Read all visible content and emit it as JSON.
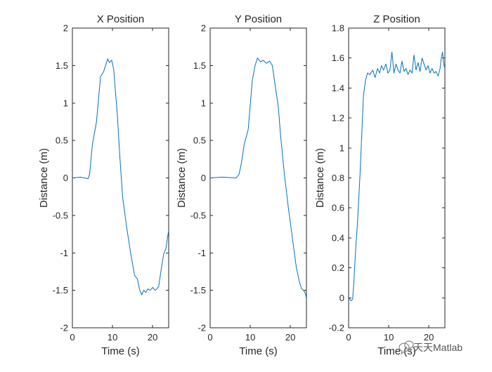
{
  "chart_data": [
    {
      "type": "line",
      "title": "X Position",
      "xlabel": "Time (s)",
      "ylabel": "Distance (m)",
      "xlim": [
        0,
        24
      ],
      "ylim": [
        -2,
        2
      ],
      "xticks": [
        0,
        10,
        20
      ],
      "yticks": [
        -2,
        -1.5,
        -1,
        -0.5,
        0,
        0.5,
        1,
        1.5,
        2
      ],
      "series": [
        {
          "name": "X",
          "x": [
            0,
            2,
            3.9,
            4.3,
            5,
            6,
            7,
            7.8,
            8.4,
            8.8,
            9.2,
            9.8,
            10.3,
            10.8,
            11.2,
            11.8,
            12.5,
            13.5,
            14.5,
            15.5,
            16.2,
            16.8,
            17.3,
            17.8,
            18.3,
            18.8,
            19.4,
            20,
            20.6,
            21.1,
            21.5,
            22.2,
            22.8,
            23.3,
            23.7,
            24
          ],
          "y": [
            0,
            0.01,
            -0.01,
            0.05,
            0.45,
            0.75,
            1.35,
            1.42,
            1.52,
            1.59,
            1.54,
            1.57,
            1.45,
            1.1,
            0.85,
            0.3,
            -0.25,
            -0.65,
            -1.0,
            -1.3,
            -1.35,
            -1.5,
            -1.56,
            -1.5,
            -1.53,
            -1.48,
            -1.5,
            -1.46,
            -1.5,
            -1.48,
            -1.45,
            -1.2,
            -1.0,
            -0.95,
            -0.8,
            -0.7
          ]
        }
      ]
    },
    {
      "type": "line",
      "title": "Y Position",
      "xlabel": "Time (s)",
      "ylabel": "Distance (m)",
      "xlim": [
        0,
        24
      ],
      "ylim": [
        -2,
        2
      ],
      "xticks": [
        0,
        10,
        20
      ],
      "yticks": [
        -2,
        -1.5,
        -1,
        -0.5,
        0,
        0.5,
        1,
        1.5,
        2
      ],
      "series": [
        {
          "name": "Y",
          "x": [
            0,
            3,
            6.5,
            7.2,
            7.8,
            8.5,
            9.5,
            10.5,
            11.2,
            11.8,
            12.5,
            13.2,
            14,
            14.8,
            15.5,
            16.3,
            17,
            17.5,
            18.5,
            19.5,
            20.5,
            21.5,
            22.3,
            22.8,
            23.3,
            23.8,
            24
          ],
          "y": [
            0,
            0.01,
            0.0,
            0.05,
            0.2,
            0.45,
            0.65,
            1.3,
            1.5,
            1.6,
            1.55,
            1.57,
            1.53,
            1.56,
            1.5,
            1.2,
            0.95,
            0.6,
            0.05,
            -0.4,
            -0.8,
            -1.2,
            -1.4,
            -1.48,
            -1.5,
            -1.55,
            -1.62
          ]
        }
      ]
    },
    {
      "type": "line",
      "title": "Z Position",
      "xlabel": "Time (s)",
      "ylabel": "Distance (m)",
      "xlim": [
        0,
        24
      ],
      "ylim": [
        -0.2,
        1.8
      ],
      "xticks": [
        0,
        10,
        20
      ],
      "yticks": [
        -0.2,
        0,
        0.2,
        0.4,
        0.6,
        0.8,
        1,
        1.2,
        1.4,
        1.6,
        1.8
      ],
      "series": [
        {
          "name": "Z",
          "x": [
            0,
            0.6,
            1,
            1.3,
            1.7,
            2.2,
            2.8,
            3.3,
            3.7,
            4.2,
            4.7,
            5.3,
            6,
            6.6,
            7.2,
            7.7,
            8.2,
            8.7,
            9.3,
            9.8,
            10.3,
            10.8,
            11.3,
            11.8,
            12.3,
            12.8,
            13.3,
            13.8,
            14.3,
            14.8,
            15.3,
            15.8,
            16.3,
            16.8,
            17.3,
            17.8,
            18.3,
            18.8,
            19.3,
            19.8,
            20.3,
            20.8,
            21.3,
            21.8,
            22.3,
            22.8,
            23.1,
            23.4,
            23.7,
            24
          ],
          "y": [
            0,
            -0.02,
            -0.01,
            0.1,
            0.3,
            0.5,
            0.8,
            1.1,
            1.35,
            1.45,
            1.5,
            1.49,
            1.52,
            1.47,
            1.53,
            1.5,
            1.55,
            1.52,
            1.56,
            1.5,
            1.52,
            1.64,
            1.5,
            1.56,
            1.52,
            1.5,
            1.58,
            1.51,
            1.53,
            1.49,
            1.52,
            1.5,
            1.62,
            1.52,
            1.57,
            1.51,
            1.6,
            1.56,
            1.52,
            1.55,
            1.5,
            1.53,
            1.5,
            1.51,
            1.48,
            1.53,
            1.6,
            1.64,
            1.56,
            1.53
          ]
        }
      ]
    }
  ],
  "watermark": {
    "text": "天天Matlab",
    "icon": "chat-bubbles-icon"
  }
}
